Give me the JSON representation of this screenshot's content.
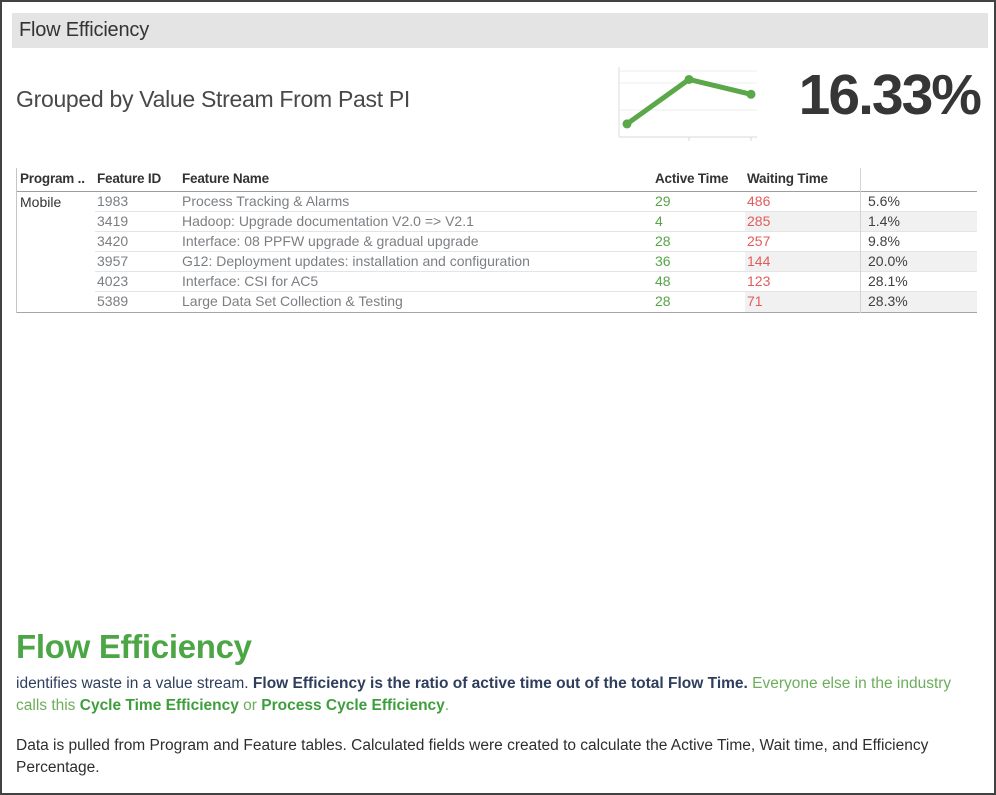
{
  "title_bar": {
    "title": "Flow Efficiency"
  },
  "summary": {
    "subtitle": "Grouped by Value Stream From Past PI",
    "kpi": "16.33%"
  },
  "chart_data": {
    "type": "line",
    "x": [
      1,
      2,
      3
    ],
    "values": [
      5,
      22,
      16.33
    ],
    "ylim": [
      0,
      26
    ],
    "title": "",
    "xlabel": "",
    "ylabel": "",
    "legend": "none",
    "grid": "faint horizontal gridlines, left and bottom axis lines",
    "color": "#5aa84a",
    "note": "unlabeled sparkline; y values estimated from pixel positions, last point matches KPI 16.33%"
  },
  "table": {
    "columns": [
      "Program ..",
      "Feature ID",
      "Feature Name",
      "Active Time",
      "Waiting Time",
      ""
    ],
    "program_group": "Mobile",
    "rows": [
      {
        "feature_id": "1983",
        "feature_name": "Process Tracking & Alarms",
        "active_time": "29",
        "waiting_time": "486",
        "efficiency": "5.6%"
      },
      {
        "feature_id": "3419",
        "feature_name": "Hadoop: Upgrade documentation V2.0 => V2.1",
        "active_time": "4",
        "waiting_time": "285",
        "efficiency": "1.4%"
      },
      {
        "feature_id": "3420",
        "feature_name": "Interface: 08 PPFW upgrade & gradual upgrade",
        "active_time": "28",
        "waiting_time": "257",
        "efficiency": "9.8%"
      },
      {
        "feature_id": "3957",
        "feature_name": "G12: Deployment updates: installation and configuration",
        "active_time": "36",
        "waiting_time": "144",
        "efficiency": "20.0%"
      },
      {
        "feature_id": "4023",
        "feature_name": "Interface: CSI for AC5",
        "active_time": "48",
        "waiting_time": "123",
        "efficiency": "28.1%"
      },
      {
        "feature_id": "5389",
        "feature_name": "Large Data Set Collection & Testing",
        "active_time": "28",
        "waiting_time": "71",
        "efficiency": "28.3%"
      }
    ]
  },
  "footer": {
    "heading": "Flow Efficiency",
    "p1": {
      "normal_navy": "identifies waste in a value stream. ",
      "bold_navy": "Flow Efficiency is the ratio of active time out of the total Flow Time.",
      "green_1": " Everyone else in the industry calls this ",
      "green_bold_1": "Cycle Time Efficiency",
      "green_2": " or ",
      "green_bold_2": "Process Cycle Efficiency",
      "green_3": "."
    },
    "p2": "Data is pulled from Program and Feature tables. Calculated fields were created to calculate the Active Time, Wait time, and Efficiency Percentage."
  },
  "colors": {
    "titlebar_bg": "#e4e4e4",
    "kpi_text": "#363636",
    "active_time_green": "#55a546",
    "waiting_time_red": "#e25c5c",
    "sparkline_green": "#5aa84a",
    "footer_heading_green": "#4ca646",
    "navy_text": "#2f3e5c",
    "green_text": "#6cad5b",
    "green_bold_text": "#3e9e3c",
    "row_band": "#f1f1f2"
  }
}
